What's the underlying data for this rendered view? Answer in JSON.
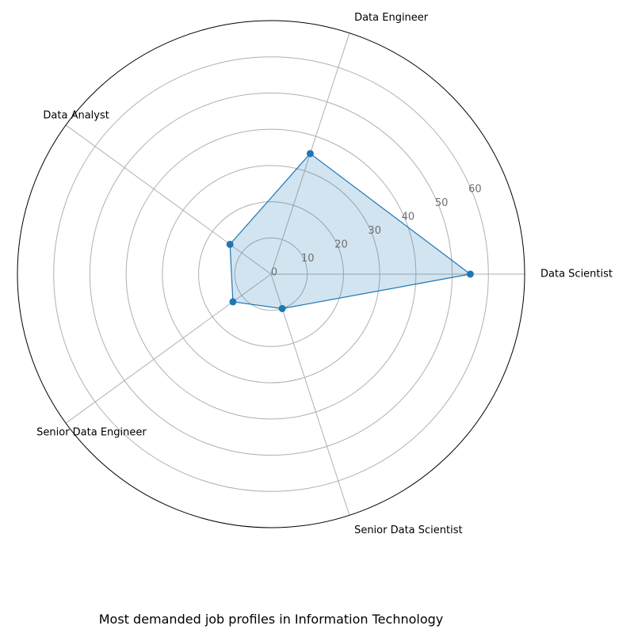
{
  "chart_data": {
    "type": "radar",
    "title": "Most demanded job profiles in Information Technology",
    "categories": [
      "Data Scientist",
      "Data Engineer",
      "Data Analyst",
      "Senior Data Engineer",
      "Senior Data Scientist"
    ],
    "series": [
      {
        "values": [
          55,
          35,
          14,
          13,
          10
        ]
      }
    ],
    "r_ticks": [
      0,
      10,
      20,
      30,
      40,
      50,
      60
    ],
    "r_range": [
      0,
      70
    ],
    "grid": true,
    "colors": {
      "line": "#1f77b4",
      "fill": "#1f77b4",
      "grid": "#b0b0b0",
      "tick_text": "#6e6e6e"
    }
  }
}
